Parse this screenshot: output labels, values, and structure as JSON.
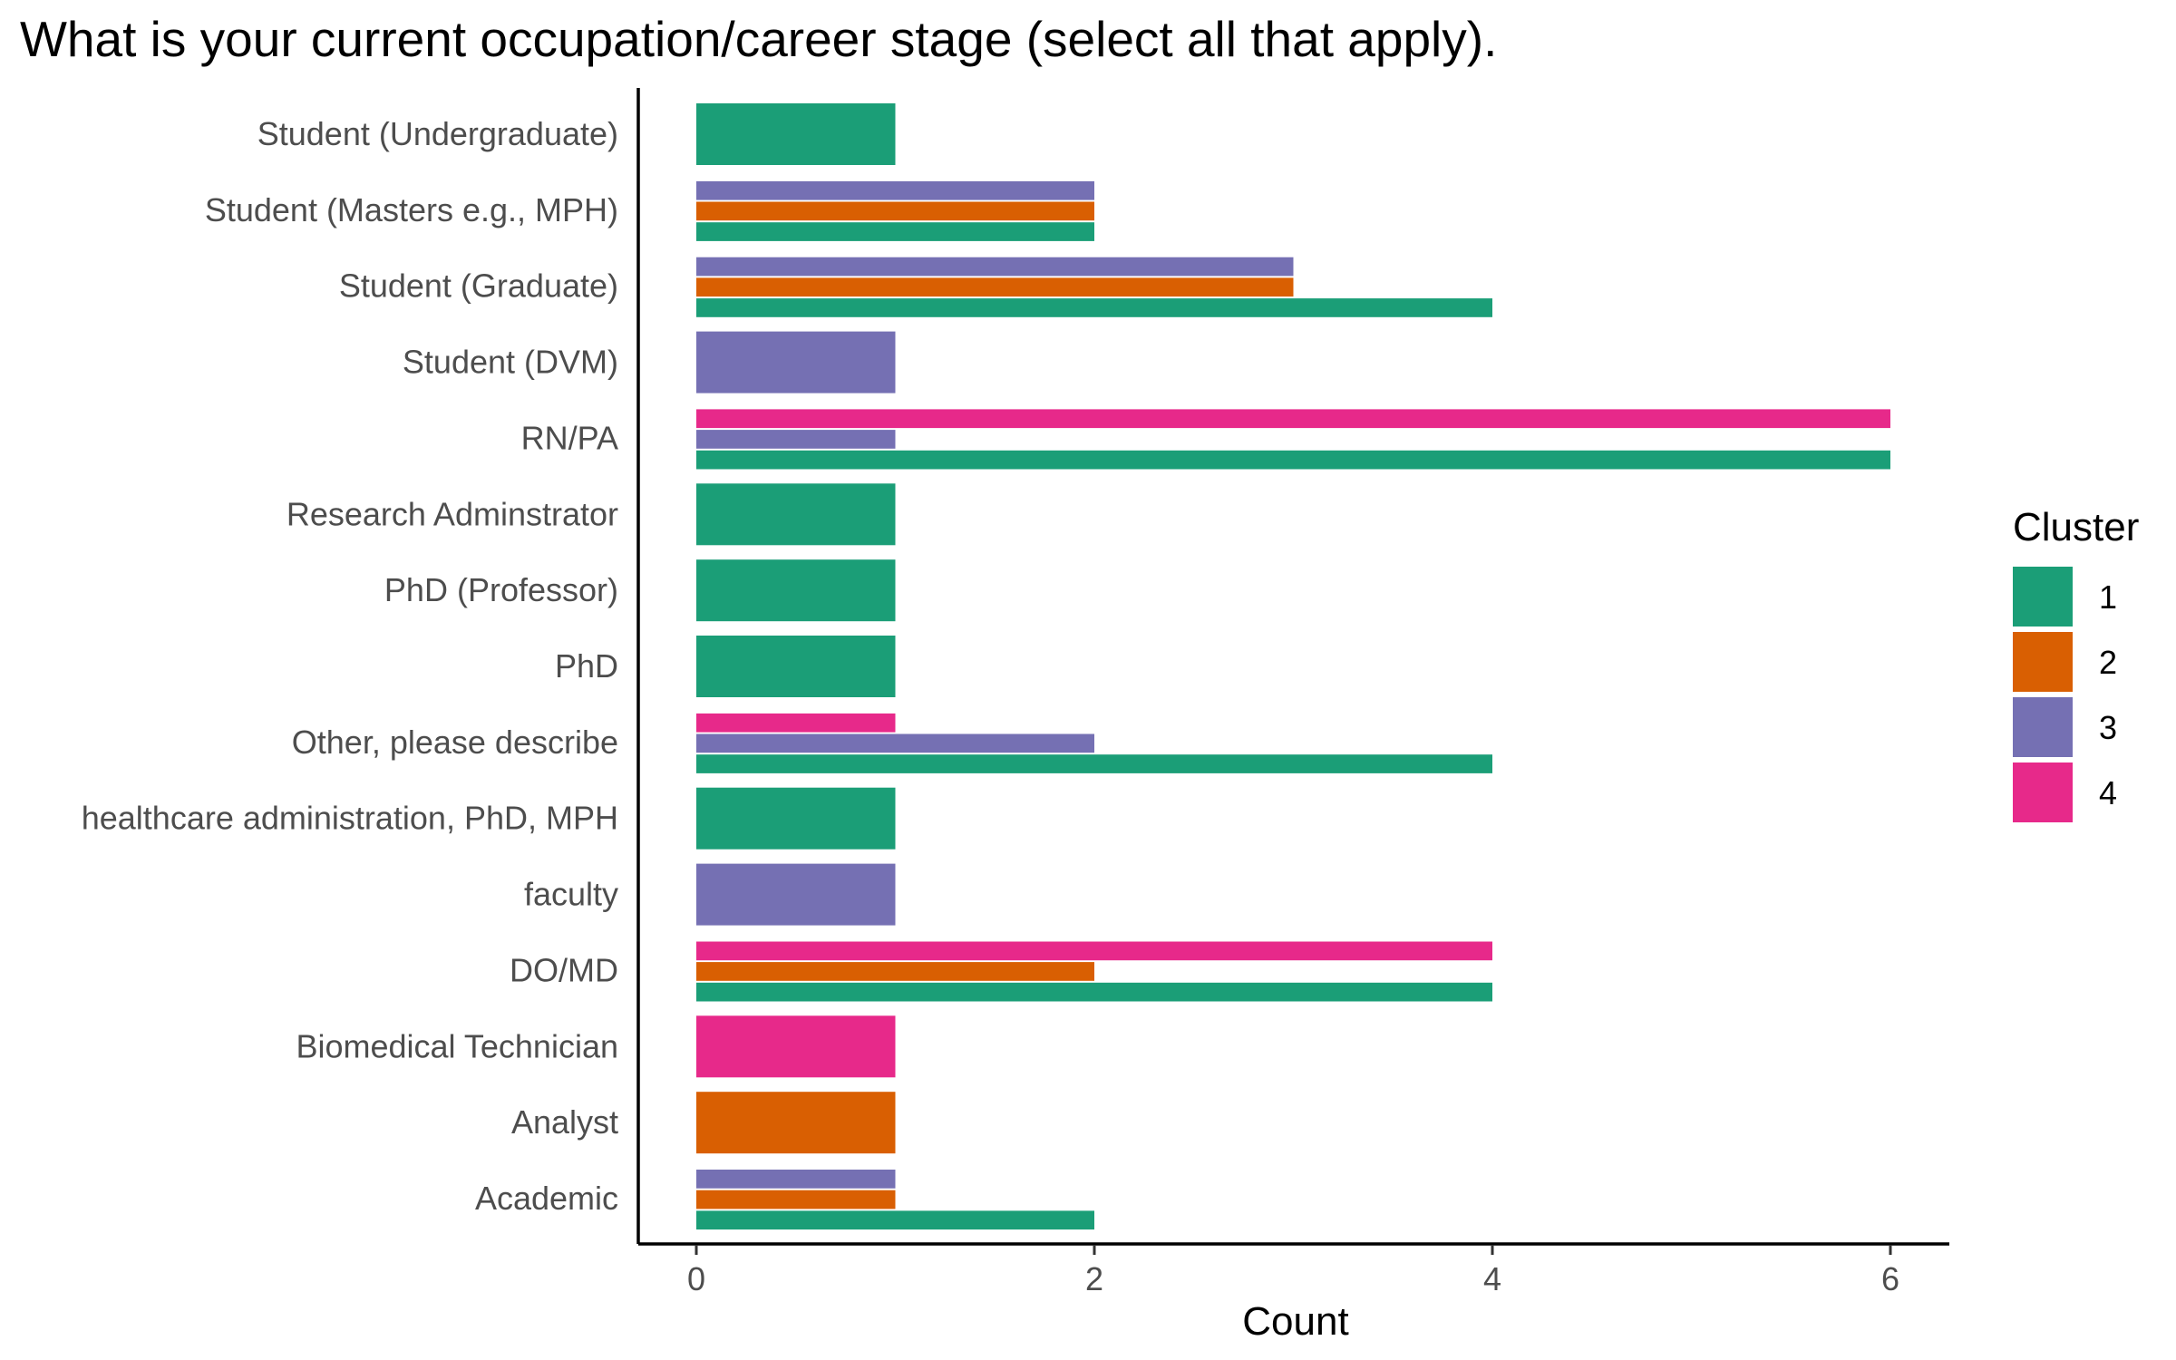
{
  "chart_data": {
    "type": "bar",
    "orientation": "horizontal",
    "title": "What is your current occupation/career stage (select all that apply).",
    "xlabel": "Count",
    "ylabel": "",
    "xlim": [
      0,
      6.3
    ],
    "x_ticks": [
      0,
      2,
      4,
      6
    ],
    "grid": false,
    "legend": {
      "title": "Cluster",
      "position": "right"
    },
    "categories": [
      "Student (Undergraduate)",
      "Student (Masters e.g., MPH)",
      "Student (Graduate)",
      "Student (DVM)",
      "RN/PA",
      "Research Adminstrator",
      "PhD (Professor)",
      "PhD",
      "Other, please describe",
      "healthcare administration, PhD, MPH",
      "faculty",
      "DO/MD",
      "Biomedical Technician",
      "Analyst",
      "Academic"
    ],
    "series": [
      {
        "name": "1",
        "color": "#1b9e77",
        "values": [
          1,
          2,
          4,
          null,
          6,
          1,
          1,
          1,
          4,
          1,
          null,
          4,
          null,
          null,
          2
        ]
      },
      {
        "name": "2",
        "color": "#d95f02",
        "values": [
          null,
          2,
          3,
          null,
          null,
          null,
          null,
          null,
          null,
          null,
          null,
          2,
          null,
          1,
          1
        ]
      },
      {
        "name": "3",
        "color": "#7570b3",
        "values": [
          null,
          2,
          3,
          1,
          1,
          null,
          null,
          null,
          2,
          null,
          1,
          null,
          null,
          null,
          1
        ]
      },
      {
        "name": "4",
        "color": "#e7298a",
        "values": [
          null,
          null,
          null,
          null,
          6,
          null,
          null,
          null,
          1,
          null,
          null,
          4,
          1,
          null,
          null
        ]
      }
    ]
  }
}
